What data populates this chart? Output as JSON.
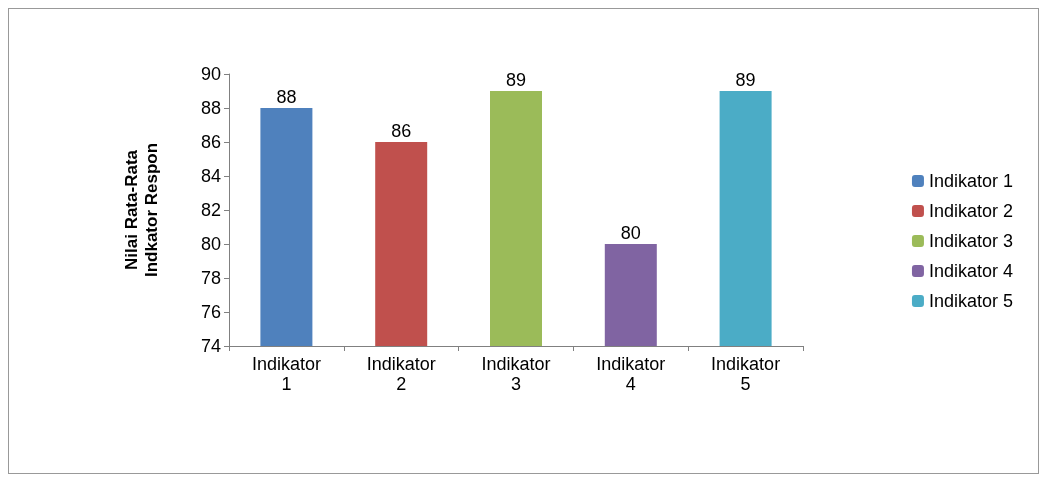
{
  "chart_data": {
    "type": "bar",
    "ylabel": "Nilai Rata-Rata\nIndkator Respon",
    "categories": [
      "Indikator\n1",
      "Indikator\n2",
      "Indikator\n3",
      "Indikator\n4",
      "Indikator\n5"
    ],
    "series": [
      {
        "name": "Indikator 1",
        "color": "#4f81bd",
        "values": [
          88,
          null,
          null,
          null,
          null
        ]
      },
      {
        "name": "Indikator 2",
        "color": "#c0504d",
        "values": [
          null,
          86,
          null,
          null,
          null
        ]
      },
      {
        "name": "Indikator 3",
        "color": "#9bbb59",
        "values": [
          null,
          null,
          89,
          null,
          null
        ]
      },
      {
        "name": "Indikator 4",
        "color": "#8064a2",
        "values": [
          null,
          null,
          null,
          80,
          null
        ]
      },
      {
        "name": "Indikator 5",
        "color": "#4bacc6",
        "values": [
          null,
          null,
          null,
          null,
          89
        ]
      }
    ],
    "ylim": [
      74,
      90
    ],
    "yticks": [
      74,
      76,
      78,
      80,
      82,
      84,
      86,
      88,
      90
    ],
    "grid": false,
    "legend": "right",
    "data_labels": true
  }
}
